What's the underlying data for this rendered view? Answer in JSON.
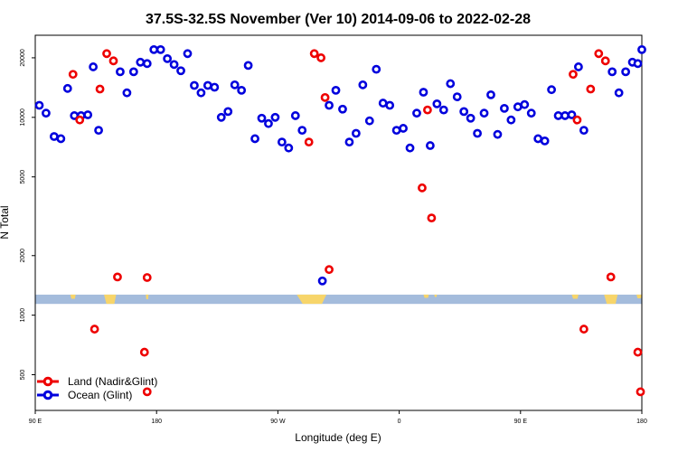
{
  "chart_data": {
    "type": "scatter",
    "title": "37.5S-32.5S November (Ver 10)   2014-09-06 to 2022-02-28",
    "xlabel": "Longitude (deg E)",
    "ylabel": "N Total",
    "y_scale": "log",
    "ylim": [
      330,
      26000
    ],
    "x_axis": {
      "min": 90,
      "max": 540,
      "tick_values": [
        90,
        180,
        270,
        360,
        450,
        540
      ],
      "tick_labels": [
        "90 E",
        "180",
        "90 W",
        "0",
        "90 E",
        "180"
      ]
    },
    "y_ticks": [
      500,
      1000,
      2000,
      5000,
      10000,
      20000
    ],
    "y_tick_labels": [
      "500",
      "1000",
      "2000",
      "5000",
      "10000",
      "20000"
    ],
    "legend": {
      "position": "bottom-left",
      "entries": [
        {
          "name": "Land (Nadir&Glint)",
          "color": "#ee0000"
        },
        {
          "name": "Ocean (Glint)",
          "color": "#0000dd"
        }
      ]
    },
    "colors": {
      "land": "#ee0000",
      "ocean": "#0000dd",
      "map_water": "#a4bcdc",
      "map_land": "#f7d56a"
    },
    "map_band_value_range": [
      1140,
      1270
    ],
    "series": [
      {
        "name": "Ocean (Glint)",
        "points": [
          [
            93,
            11500
          ],
          [
            98,
            10500
          ],
          [
            104,
            8000
          ],
          [
            109,
            7800
          ],
          [
            114,
            14000
          ],
          [
            119,
            10200
          ],
          [
            124,
            10200
          ],
          [
            129,
            10300
          ],
          [
            133,
            18000
          ],
          [
            137,
            8600
          ],
          [
            153,
            17000
          ],
          [
            158,
            13300
          ],
          [
            163,
            17000
          ],
          [
            168,
            19000
          ],
          [
            173,
            18700
          ],
          [
            178,
            22000
          ],
          [
            183,
            22000
          ],
          [
            188,
            19800
          ],
          [
            193,
            18500
          ],
          [
            198,
            17200
          ],
          [
            203,
            21000
          ],
          [
            208,
            14500
          ],
          [
            213,
            13300
          ],
          [
            218,
            14500
          ],
          [
            223,
            14200
          ],
          [
            228,
            10000
          ],
          [
            233,
            10700
          ],
          [
            238,
            14600
          ],
          [
            243,
            13700
          ],
          [
            248,
            18300
          ],
          [
            253,
            7800
          ],
          [
            258,
            9900
          ],
          [
            263,
            9300
          ],
          [
            268,
            10000
          ],
          [
            273,
            7500
          ],
          [
            278,
            7000
          ],
          [
            283,
            10200
          ],
          [
            288,
            8600
          ],
          [
            303,
            1490
          ],
          [
            308,
            11500
          ],
          [
            313,
            13700
          ],
          [
            318,
            11000
          ],
          [
            323,
            7500
          ],
          [
            328,
            8300
          ],
          [
            333,
            14600
          ],
          [
            338,
            9600
          ],
          [
            343,
            17500
          ],
          [
            348,
            11800
          ],
          [
            353,
            11500
          ],
          [
            358,
            8600
          ],
          [
            363,
            8800
          ],
          [
            368,
            7000
          ],
          [
            373,
            10500
          ],
          [
            378,
            13400
          ],
          [
            383,
            7200
          ],
          [
            388,
            11700
          ],
          [
            393,
            10900
          ],
          [
            398,
            14800
          ],
          [
            403,
            12700
          ],
          [
            408,
            10700
          ],
          [
            413,
            9900
          ],
          [
            418,
            8300
          ],
          [
            423,
            10500
          ],
          [
            428,
            13000
          ],
          [
            433,
            8200
          ],
          [
            438,
            11100
          ],
          [
            443,
            9700
          ],
          [
            448,
            11300
          ],
          [
            453,
            11600
          ],
          [
            458,
            10500
          ],
          [
            463,
            7800
          ],
          [
            468,
            7600
          ],
          [
            473,
            13800
          ],
          [
            478,
            10200
          ],
          [
            483,
            10200
          ],
          [
            488,
            10300
          ],
          [
            493,
            18000
          ],
          [
            497,
            8600
          ],
          [
            518,
            17000
          ],
          [
            523,
            13300
          ],
          [
            528,
            17000
          ],
          [
            533,
            19000
          ],
          [
            537,
            18700
          ],
          [
            540,
            22000
          ]
        ]
      },
      {
        "name": "Land (Nadir&Glint)",
        "points": [
          [
            118,
            16500
          ],
          [
            123,
            9700
          ],
          [
            134,
            850
          ],
          [
            138,
            13900
          ],
          [
            143,
            21000
          ],
          [
            148,
            19300
          ],
          [
            151,
            1560
          ],
          [
            173,
            1550
          ],
          [
            171,
            650
          ],
          [
            173,
            410
          ],
          [
            293,
            7500
          ],
          [
            297,
            21000
          ],
          [
            302,
            20000
          ],
          [
            305,
            12600
          ],
          [
            308,
            1700
          ],
          [
            377,
            4400
          ],
          [
            381,
            10900
          ],
          [
            384,
            3100
          ],
          [
            489,
            16500
          ],
          [
            492,
            9700
          ],
          [
            497,
            850
          ],
          [
            502,
            13900
          ],
          [
            508,
            21000
          ],
          [
            513,
            19300
          ],
          [
            517,
            1560
          ],
          [
            537,
            650
          ],
          [
            539,
            410
          ]
        ]
      }
    ]
  }
}
